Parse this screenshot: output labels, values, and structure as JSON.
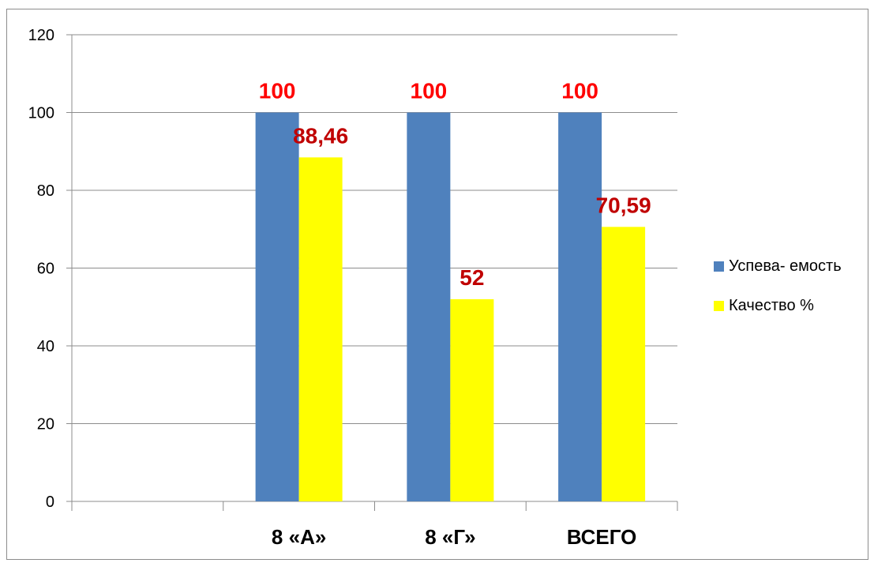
{
  "chart_data": {
    "type": "bar",
    "categories": [
      "",
      "8 «А»",
      "8 «Г»",
      "ВСЕГО"
    ],
    "series": [
      {
        "name": "Успева- емость",
        "values": [
          null,
          100,
          100,
          100
        ],
        "color": "#4f81bd",
        "labels": [
          "",
          "100",
          "100",
          "100"
        ],
        "label_color": "#ff0000"
      },
      {
        "name": "Качество %",
        "values": [
          null,
          88.46,
          52,
          70.59
        ],
        "color": "#ffff00",
        "labels": [
          "",
          "88,46",
          "52",
          "70,59"
        ],
        "label_color": "#c00000"
      }
    ],
    "ylim": [
      0,
      120
    ],
    "yticks": [
      "0",
      "20",
      "40",
      "60",
      "80",
      "100",
      "120"
    ],
    "grid": true,
    "legend": "right",
    "title": "",
    "xlabel": "",
    "ylabel": ""
  }
}
